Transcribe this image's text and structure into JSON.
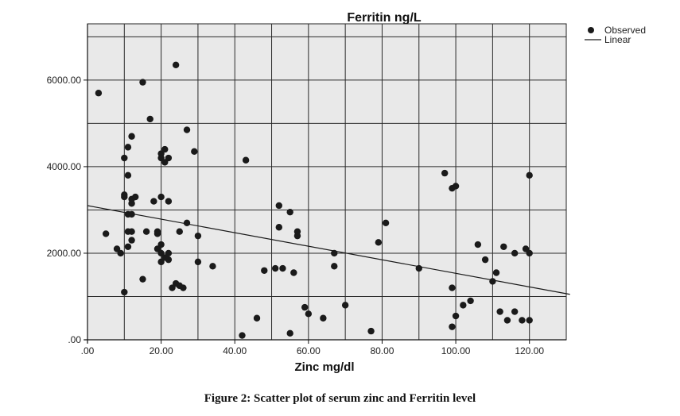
{
  "caption": "Figure 2: Scatter plot of serum zinc and Ferritin level",
  "chart_data": {
    "type": "scatter",
    "title": "Ferritin ng/L",
    "xlabel": "Zinc mg/dl",
    "ylabel": "",
    "xlim": [
      0,
      130
    ],
    "ylim": [
      0,
      7300
    ],
    "grid": true,
    "x_ticks": [
      0,
      20,
      40,
      60,
      80,
      100,
      120
    ],
    "x_tick_labels": [
      ".00",
      "20.00",
      "40.00",
      "60.00",
      "80.00",
      "100.00",
      "120.00"
    ],
    "y_ticks": [
      0,
      2000,
      4000,
      6000
    ],
    "y_tick_labels": [
      ".00",
      "2000.00",
      "4000.00",
      "6000.00"
    ],
    "legend": {
      "position": "top-right",
      "entries": [
        {
          "label": "Observed",
          "marker": "dot"
        },
        {
          "label": "Linear",
          "marker": "line"
        }
      ]
    },
    "series": [
      {
        "name": "Observed",
        "type": "scatter",
        "color": "#1a1a1a",
        "points": [
          [
            3,
            5700
          ],
          [
            5,
            2450
          ],
          [
            8,
            2100
          ],
          [
            9,
            2000
          ],
          [
            10,
            4200
          ],
          [
            10,
            3350
          ],
          [
            10,
            3300
          ],
          [
            10,
            1100
          ],
          [
            11,
            4450
          ],
          [
            11,
            3800
          ],
          [
            11,
            2900
          ],
          [
            11,
            2500
          ],
          [
            11,
            2150
          ],
          [
            12,
            4700
          ],
          [
            12,
            3250
          ],
          [
            12,
            3150
          ],
          [
            12,
            2900
          ],
          [
            12,
            2500
          ],
          [
            12,
            2300
          ],
          [
            13,
            3300
          ],
          [
            15,
            5950
          ],
          [
            15,
            1400
          ],
          [
            16,
            2500
          ],
          [
            17,
            5100
          ],
          [
            18,
            3200
          ],
          [
            19,
            2500
          ],
          [
            19,
            2450
          ],
          [
            19,
            2100
          ],
          [
            20,
            4300
          ],
          [
            20,
            4200
          ],
          [
            20,
            3300
          ],
          [
            20,
            2200
          ],
          [
            20,
            2000
          ],
          [
            20,
            1800
          ],
          [
            21,
            4400
          ],
          [
            21,
            4100
          ],
          [
            21,
            1900
          ],
          [
            22,
            4200
          ],
          [
            22,
            3200
          ],
          [
            22,
            2000
          ],
          [
            22,
            1850
          ],
          [
            23,
            1200
          ],
          [
            24,
            6350
          ],
          [
            24,
            1300
          ],
          [
            25,
            2500
          ],
          [
            25,
            1250
          ],
          [
            26,
            1200
          ],
          [
            27,
            4850
          ],
          [
            27,
            2700
          ],
          [
            29,
            4350
          ],
          [
            30,
            2400
          ],
          [
            30,
            1800
          ],
          [
            34,
            1700
          ],
          [
            42,
            100
          ],
          [
            43,
            4150
          ],
          [
            46,
            500
          ],
          [
            48,
            1600
          ],
          [
            51,
            1650
          ],
          [
            52,
            3100
          ],
          [
            52,
            2600
          ],
          [
            53,
            1650
          ],
          [
            55,
            2950
          ],
          [
            55,
            150
          ],
          [
            56,
            1550
          ],
          [
            57,
            2500
          ],
          [
            57,
            2400
          ],
          [
            59,
            750
          ],
          [
            60,
            600
          ],
          [
            64,
            500
          ],
          [
            67,
            2000
          ],
          [
            67,
            1700
          ],
          [
            70,
            800
          ],
          [
            77,
            200
          ],
          [
            79,
            2250
          ],
          [
            81,
            2700
          ],
          [
            90,
            1650
          ],
          [
            97,
            3850
          ],
          [
            99,
            3500
          ],
          [
            99,
            1200
          ],
          [
            99,
            300
          ],
          [
            100,
            3550
          ],
          [
            100,
            550
          ],
          [
            102,
            800
          ],
          [
            104,
            900
          ],
          [
            106,
            2200
          ],
          [
            108,
            1850
          ],
          [
            110,
            1350
          ],
          [
            111,
            1550
          ],
          [
            112,
            650
          ],
          [
            113,
            2150
          ],
          [
            114,
            450
          ],
          [
            116,
            2000
          ],
          [
            116,
            650
          ],
          [
            118,
            450
          ],
          [
            119,
            2100
          ],
          [
            120,
            3800
          ],
          [
            120,
            2000
          ],
          [
            120,
            450
          ]
        ]
      },
      {
        "name": "Linear",
        "type": "line",
        "color": "#1a1a1a",
        "points": [
          [
            0,
            3100
          ],
          [
            131,
            1050
          ]
        ]
      }
    ]
  }
}
